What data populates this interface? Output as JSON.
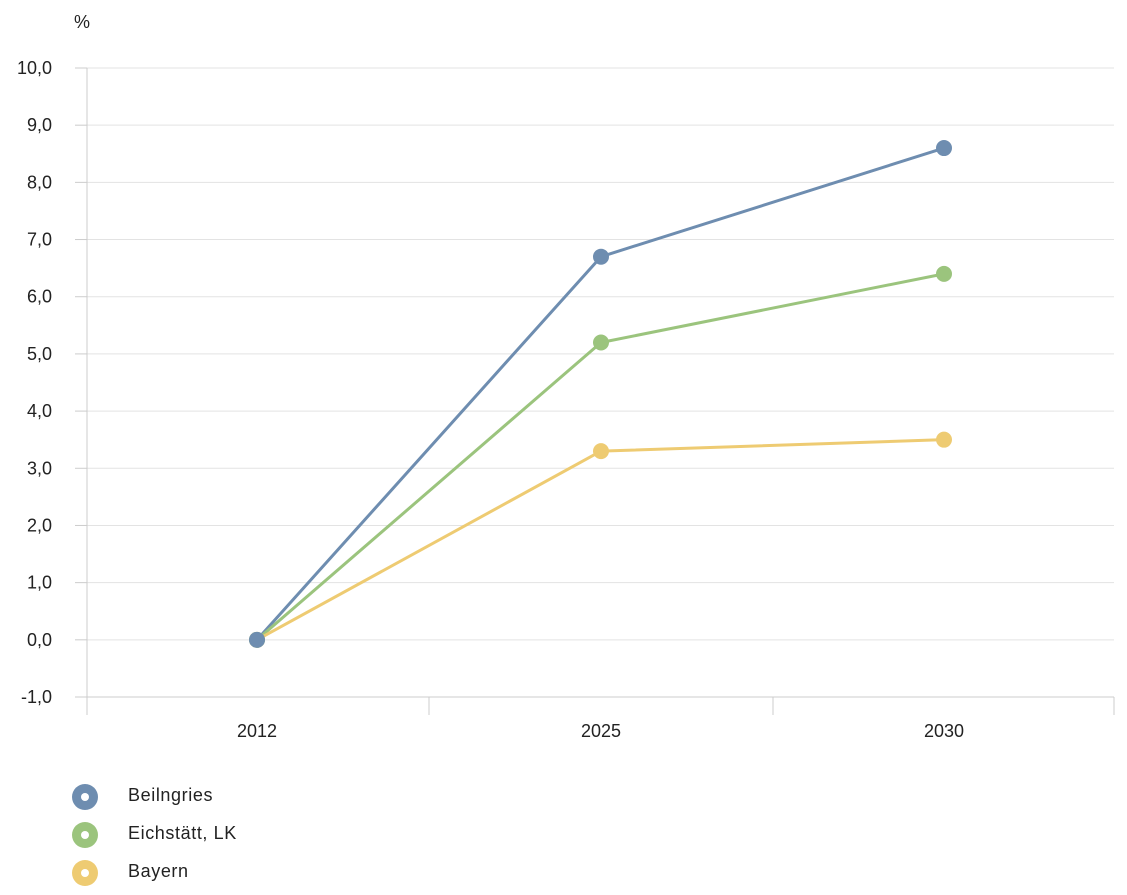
{
  "chart_data": {
    "type": "line",
    "ylabel": "%",
    "xlabel": "",
    "categories": [
      "2012",
      "2025",
      "2030"
    ],
    "ylim": [
      -1.0,
      10.0
    ],
    "yticks": [
      "10,0",
      "9,0",
      "8,0",
      "7,0",
      "6,0",
      "5,0",
      "4,0",
      "3,0",
      "2,0",
      "1,0",
      "0,0",
      "-1,0"
    ],
    "grid": true,
    "legend_position": "bottom-left",
    "series": [
      {
        "name": "Beilngries",
        "color": "#6e8db0",
        "values": [
          0.0,
          6.7,
          8.6
        ]
      },
      {
        "name": "Eichstätt, LK",
        "color": "#9bc47d",
        "values": [
          0.0,
          5.2,
          6.4
        ]
      },
      {
        "name": "Bayern",
        "color": "#eecb72",
        "values": [
          0.0,
          3.3,
          3.5
        ]
      }
    ]
  }
}
